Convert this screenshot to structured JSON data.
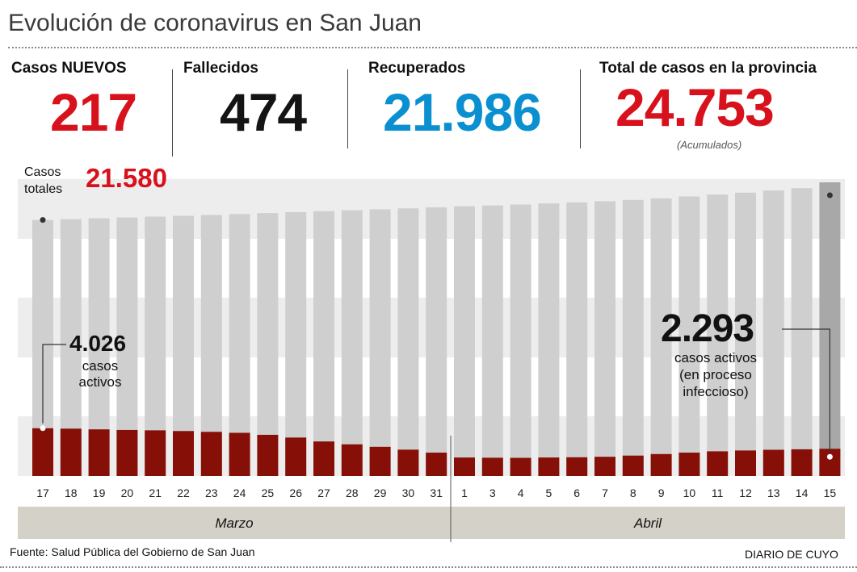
{
  "title": "Evolución de coronavirus en San Juan",
  "stats": {
    "nuevos": {
      "label": "Casos NUEVOS",
      "value": "217"
    },
    "fallecidos": {
      "label": "Fallecidos",
      "value": "474"
    },
    "recuperados": {
      "label": "Recuperados",
      "value": "21.986"
    },
    "total": {
      "label": "Total de casos en la provincia",
      "value": "24.753",
      "note": "(Acumulados)"
    }
  },
  "annotations": {
    "casos_totales_label": [
      "Casos",
      "totales"
    ],
    "casos_totales_value": "21.580",
    "start_active_value": "4.026",
    "start_active_label": [
      "casos",
      "activos"
    ],
    "end_active_value": "2.293",
    "end_active_label": [
      "casos activos",
      "(en proceso",
      "infeccioso)"
    ]
  },
  "months": [
    "Marzo",
    "Abril"
  ],
  "footer": {
    "source": "Fuente: Salud Pública del Gobierno de San Juan",
    "credit": "DIARIO DE CUYO"
  },
  "colors": {
    "red": "#d8121d",
    "blue": "#0a8fd0",
    "dark_red": "#861008",
    "bar_gray": "#cfcfcf",
    "highlight_gray": "#a8a8a8",
    "band": "#ededed",
    "month_band": "#d4d2c8"
  },
  "chart_data": {
    "type": "bar",
    "categories": [
      "17",
      "18",
      "19",
      "20",
      "21",
      "22",
      "23",
      "24",
      "25",
      "26",
      "27",
      "28",
      "29",
      "30",
      "31",
      "1",
      "3",
      "4",
      "5",
      "6",
      "7",
      "8",
      "9",
      "10",
      "11",
      "12",
      "13",
      "14",
      "15"
    ],
    "series": [
      {
        "name": "Casos totales",
        "values": [
          21580,
          21650,
          21720,
          21790,
          21860,
          21930,
          22000,
          22080,
          22160,
          22240,
          22320,
          22400,
          22480,
          22560,
          22640,
          22730,
          22800,
          22880,
          22970,
          23060,
          23160,
          23270,
          23400,
          23560,
          23720,
          23880,
          24070,
          24260,
          24753
        ]
      },
      {
        "name": "casos activos",
        "values": [
          4026,
          3990,
          3930,
          3880,
          3850,
          3790,
          3720,
          3640,
          3470,
          3240,
          2910,
          2670,
          2460,
          2220,
          1970,
          1560,
          1540,
          1530,
          1560,
          1580,
          1620,
          1720,
          1850,
          1970,
          2080,
          2150,
          2210,
          2250,
          2293
        ]
      }
    ],
    "ylim": [
      0,
      25500
    ],
    "xlabel": "",
    "ylabel": "",
    "legend": "none",
    "grid": false
  }
}
